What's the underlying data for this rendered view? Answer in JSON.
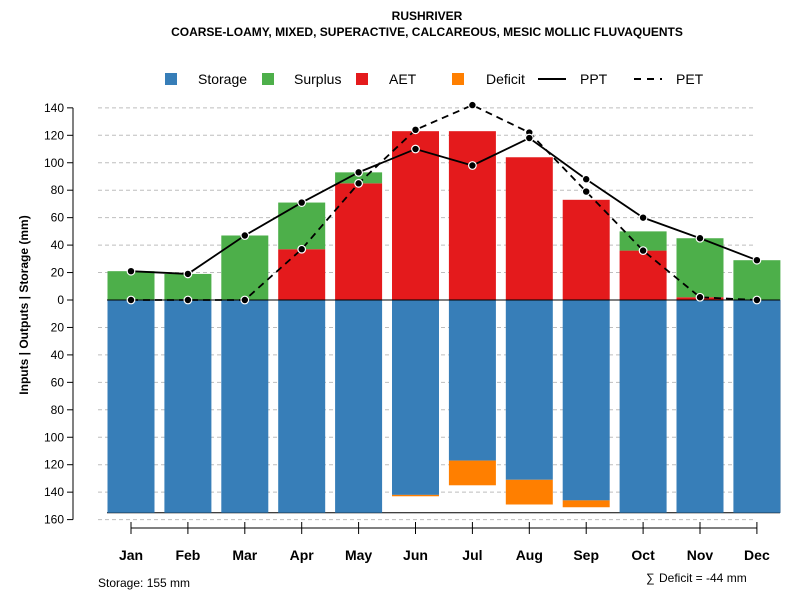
{
  "chart_data": {
    "type": "bar",
    "title": "RUSHRIVER",
    "subtitle": "COARSE-LOAMY, MIXED, SUPERACTIVE, CALCAREOUS, MESIC MOLLIC FLUVAQUENTS",
    "ylabel": "Inputs | Outputs | Storage    (mm)",
    "xlabel": "",
    "ylim": [
      -160,
      145
    ],
    "y_ticks": [
      140,
      120,
      100,
      80,
      60,
      40,
      20,
      0,
      -20,
      -40,
      -60,
      -80,
      -100,
      -120,
      -140,
      -160
    ],
    "y_tick_labels": [
      "140",
      "120",
      "100",
      "80",
      "60",
      "40",
      "20",
      "0",
      "20",
      "40",
      "60",
      "80",
      "100",
      "120",
      "140",
      "160"
    ],
    "categories": [
      "Jan",
      "Feb",
      "Mar",
      "Apr",
      "May",
      "Jun",
      "Jul",
      "Aug",
      "Sep",
      "Oct",
      "Nov",
      "Dec"
    ],
    "legend": [
      {
        "name": "Storage",
        "kind": "box",
        "color": "#377EB8"
      },
      {
        "name": "Surplus",
        "kind": "box",
        "color": "#4DAF4A"
      },
      {
        "name": "AET",
        "kind": "box",
        "color": "#E41A1C"
      },
      {
        "name": "Deficit",
        "kind": "box",
        "color": "#FF7F00"
      },
      {
        "name": "PPT",
        "kind": "line",
        "color": "#000000"
      },
      {
        "name": "PET",
        "kind": "dashed",
        "color": "#000000"
      }
    ],
    "series": [
      {
        "name": "AET",
        "values": [
          0,
          0,
          0,
          37,
          85,
          123,
          123,
          104,
          73,
          36,
          2,
          0
        ]
      },
      {
        "name": "Surplus",
        "values": [
          21,
          19,
          47,
          34,
          8,
          0,
          0,
          0,
          0,
          14,
          43,
          29
        ]
      },
      {
        "name": "Storage",
        "values": [
          155,
          155,
          155,
          155,
          155,
          142,
          117,
          131,
          146,
          155,
          155,
          155
        ]
      },
      {
        "name": "Deficit",
        "values": [
          0,
          0,
          0,
          0,
          0,
          1,
          18,
          18,
          5,
          0,
          0,
          0
        ]
      },
      {
        "name": "PPT",
        "values": [
          21,
          19,
          47,
          71,
          93,
          110,
          98,
          118,
          88,
          60,
          45,
          29
        ]
      },
      {
        "name": "PET",
        "values": [
          0,
          0,
          0,
          37,
          85,
          124,
          142,
          122,
          79,
          36,
          2,
          0
        ]
      }
    ],
    "colors": {
      "storage": "#377EB8",
      "surplus": "#4DAF4A",
      "aet": "#E41A1C",
      "deficit": "#FF7F00",
      "grid": "#BEBEBE"
    }
  },
  "footer": {
    "storage_note": "Storage: 155 mm",
    "deficit_symbol": "∑",
    "deficit_note": "Deficit = -44 mm"
  }
}
